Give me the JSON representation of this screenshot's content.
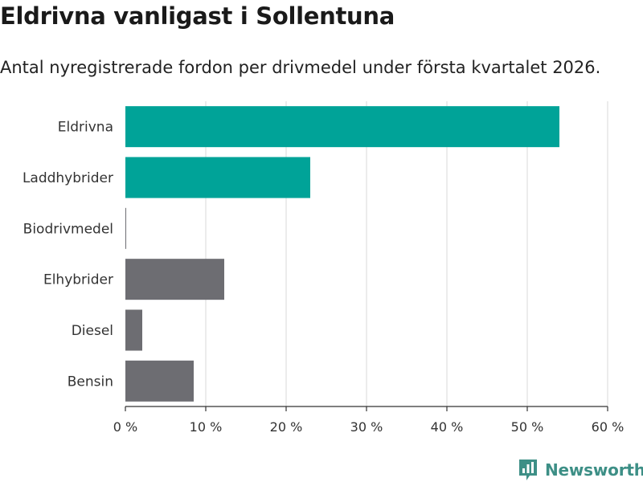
{
  "header": {
    "title": "Eldrivna vanligast i Sollentuna",
    "subtitle": "Antal nyregistrerade fordon per drivmedel under första kvartalet 2026."
  },
  "brand": {
    "name": "Newsworthy",
    "icon": "newsworthy-logo-icon",
    "color": "#3d8f86"
  },
  "colors": {
    "highlight": "#00a398",
    "default": "#6d6d72",
    "grid": "#d9d9d9",
    "axis": "#333333"
  },
  "chart_data": {
    "type": "bar",
    "orientation": "horizontal",
    "title": "Eldrivna vanligast i Sollentuna",
    "subtitle": "Antal nyregistrerade fordon per drivmedel under första kvartalet 2026.",
    "categories": [
      "Eldrivna",
      "Laddhybrider",
      "Biodrivmedel",
      "Elhybrider",
      "Diesel",
      "Bensin"
    ],
    "values": [
      54,
      23,
      0.1,
      12.3,
      2.1,
      8.5
    ],
    "highlighted": [
      true,
      true,
      false,
      false,
      false,
      false
    ],
    "xlim": [
      0,
      60
    ],
    "xticks": [
      0,
      10,
      20,
      30,
      40,
      50,
      60
    ],
    "xtick_labels": [
      "0 %",
      "10 %",
      "20 %",
      "30 %",
      "40 %",
      "50 %",
      "60 %"
    ],
    "xlabel": "",
    "ylabel": "",
    "grid": "vertical",
    "legend": "none"
  }
}
